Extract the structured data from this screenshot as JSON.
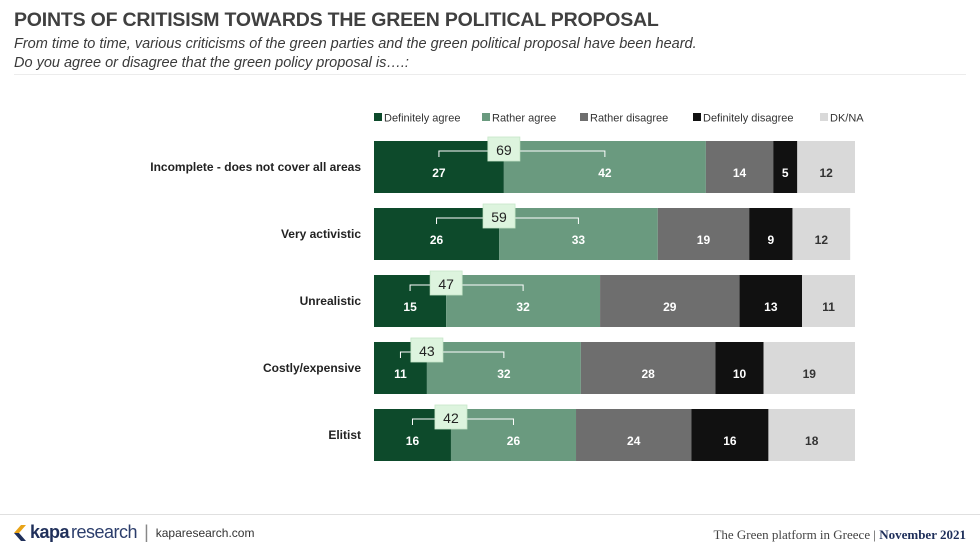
{
  "header": {
    "title": "POINTS OF CRITISISM TOWARDS THE GREEN POLITICAL PROPOSAL",
    "subtitle_line1": "From time to time, various criticisms of the green parties and the green political proposal have been heard.",
    "subtitle_line2": "Do you agree or disagree that the green policy proposal is….:"
  },
  "chart_data": {
    "type": "bar",
    "orientation": "horizontal",
    "stacked": true,
    "legend_position": "top",
    "categories": [
      "Incomplete - does not cover all areas",
      "Very activistic",
      "Unrealistic",
      "Costly/expensive",
      "Elitist"
    ],
    "series": [
      {
        "name": "Definitely agree",
        "color": "#0d4a2b",
        "values": [
          27,
          26,
          15,
          11,
          16
        ]
      },
      {
        "name": "Rather agree",
        "color": "#6a9a7f",
        "values": [
          42,
          33,
          32,
          32,
          26
        ]
      },
      {
        "name": "Rather disagree",
        "color": "#6e6e6e",
        "values": [
          14,
          19,
          29,
          28,
          24
        ]
      },
      {
        "name": "Definitely disagree",
        "color": "#111111",
        "values": [
          5,
          9,
          13,
          10,
          16
        ]
      },
      {
        "name": "DK/NA",
        "color": "#d9d9d9",
        "values": [
          12,
          12,
          11,
          19,
          18
        ]
      }
    ],
    "totals_agree": [
      69,
      59,
      47,
      43,
      42
    ],
    "xlim": [
      0,
      100
    ]
  },
  "footer": {
    "brand_bold": "kapa",
    "brand_light": "research",
    "website": "kaparesearch.com",
    "report_title": "The Green platform in Greece",
    "date": "November 2021"
  }
}
